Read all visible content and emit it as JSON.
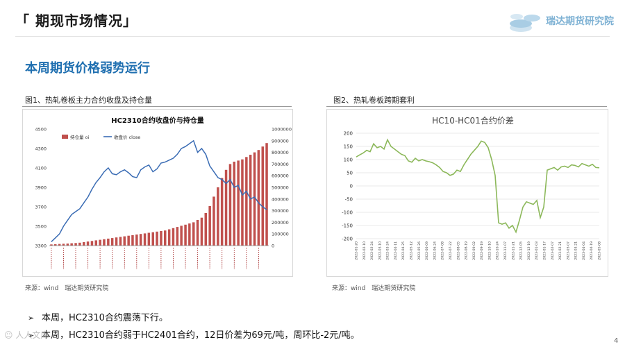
{
  "header": {
    "title": "「 期现市场情况」",
    "brand": "瑞达期货研究院",
    "logo_icon": "coin-stack-icon"
  },
  "section": {
    "heading": "本周期货价格弱势运行"
  },
  "figure1": {
    "caption": "图1、热轧卷板主力合约收盘及持仓量",
    "source": "来源：wind　瑞达期货研究院"
  },
  "figure2": {
    "caption": "图2、热轧卷板跨期套利",
    "source": "来源：wind　瑞达期货研究院"
  },
  "bullets": [
    "本周，HC2310合约震荡下行。",
    "本周，HC2310合约弱于HC2401合约，12日价差为69元/吨，周环比-2元/吨。"
  ],
  "footer": {
    "page_number": "4",
    "watermark": "☺ 人人文库"
  },
  "colors": {
    "title_blue": "#1f6fb0",
    "price_line": "#3a6cb4",
    "oi_bar": "#c0504d",
    "spread_line": "#8cb85a",
    "brand_blue": "#7fb2d4"
  },
  "chart_data": [
    {
      "type": "bar+line",
      "title": "HC2310合约收盘价与持仓量",
      "series": [
        {
          "name": "持仓量 oi",
          "axis": "right",
          "type": "bar",
          "values": [
            10000,
            12000,
            14000,
            16000,
            18000,
            20000,
            22000,
            25000,
            30000,
            35000,
            40000,
            45000,
            50000,
            55000,
            60000,
            65000,
            70000,
            75000,
            80000,
            85000,
            90000,
            95000,
            100000,
            105000,
            110000,
            115000,
            120000,
            125000,
            130000,
            140000,
            150000,
            160000,
            170000,
            180000,
            190000,
            200000,
            220000,
            240000,
            280000,
            340000,
            420000,
            500000,
            580000,
            650000,
            700000,
            720000,
            730000,
            740000,
            760000,
            780000,
            800000,
            820000,
            850000,
            880000
          ]
        },
        {
          "name": "收盘价 close",
          "axis": "left",
          "type": "line",
          "values": [
            3340,
            3380,
            3420,
            3500,
            3560,
            3620,
            3650,
            3680,
            3740,
            3800,
            3880,
            3950,
            4000,
            4060,
            4100,
            4040,
            4030,
            4060,
            4080,
            4050,
            4010,
            4000,
            4080,
            4110,
            4130,
            4060,
            4090,
            4150,
            4160,
            4180,
            4200,
            4240,
            4300,
            4320,
            4350,
            4380,
            4260,
            4300,
            4240,
            4120,
            4060,
            4000,
            3980,
            3940,
            3980,
            3900,
            3920,
            3820,
            3860,
            3780,
            3800,
            3740,
            3700,
            3670
          ]
        }
      ],
      "ylim_left": [
        3300,
        4500
      ],
      "ylim_right": [
        0,
        1000000
      ],
      "yticks_left": [
        "3300",
        "3500",
        "3700",
        "3900",
        "4100",
        "4300",
        "4500"
      ],
      "yticks_right": [
        "0",
        "100000",
        "200000",
        "300000",
        "400000",
        "500000",
        "600000",
        "700000",
        "800000",
        "900000",
        "1000000"
      ],
      "legend": "top-left",
      "grid": false
    },
    {
      "type": "line",
      "title": "HC10-HC01合约价差",
      "x_start": "2022-01-20",
      "x_end": "2023-05-08",
      "xticks": [
        "2022-01-20",
        "2022-02-10",
        "2022-02-24",
        "2022-03-10",
        "2022-03-24",
        "2022-04-11",
        "2022-04-25",
        "2022-05-12",
        "2022-05-26",
        "2022-06-09",
        "2022-06-24",
        "2022-07-08",
        "2022-07-22",
        "2022-08-05",
        "2022-08-19",
        "2022-09-02",
        "2022-09-19",
        "2022-10-10",
        "2022-10-24",
        "2022-11-07",
        "2022-11-21",
        "2022-12-05",
        "2022-12-19",
        "2023-01-03",
        "2023-01-17",
        "2023-02-07",
        "2023-02-21",
        "2023-03-07",
        "2023-03-21",
        "2023-04-04",
        "2023-04-19",
        "2023-05-08"
      ],
      "ylim": [
        -200,
        200
      ],
      "yticks": [
        "-200",
        "-150",
        "-100",
        "-50",
        "0",
        "50",
        "100",
        "150",
        "200"
      ],
      "series": [
        {
          "values": [
            110,
            118,
            125,
            135,
            130,
            160,
            145,
            150,
            140,
            175,
            150,
            140,
            130,
            120,
            115,
            95,
            90,
            105,
            95,
            100,
            95,
            92,
            88,
            80,
            70,
            55,
            50,
            40,
            45,
            60,
            55,
            80,
            100,
            120,
            135,
            150,
            170,
            165,
            145,
            100,
            40,
            -140,
            -145,
            -140,
            -160,
            -150,
            -175,
            -130,
            -80,
            -60,
            -65,
            -70,
            -55,
            -120,
            -80,
            60,
            65,
            70,
            60,
            72,
            75,
            70,
            80,
            78,
            72,
            85,
            80,
            75,
            82,
            70,
            69
          ]
        }
      ],
      "grid": true,
      "legend": "none"
    }
  ]
}
